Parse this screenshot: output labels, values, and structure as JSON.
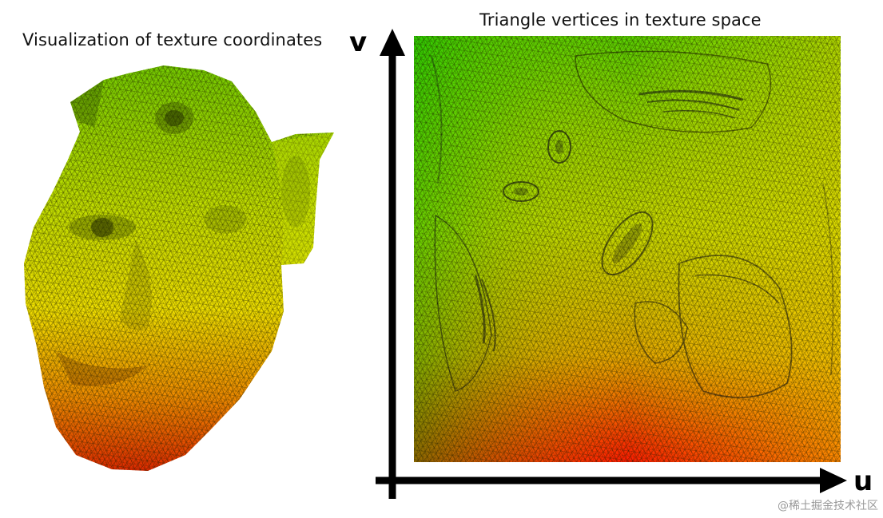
{
  "left_panel": {
    "caption": "Visualization of texture coordinates"
  },
  "right_panel": {
    "caption": "Triangle vertices in texture space",
    "axis_v_label": "v",
    "axis_u_label": "u"
  },
  "watermark": "@稀土掘金技术社区",
  "colors": {
    "top": "#7ed400",
    "middle": "#f0e800",
    "bottom": "#e83000",
    "top_left": "#4cd000",
    "top_right": "#f2e600",
    "bottom_left": "#ff2000",
    "bottom_right": "#ff1200",
    "axis": "#000000",
    "mesh_line": "#1a1a00"
  }
}
